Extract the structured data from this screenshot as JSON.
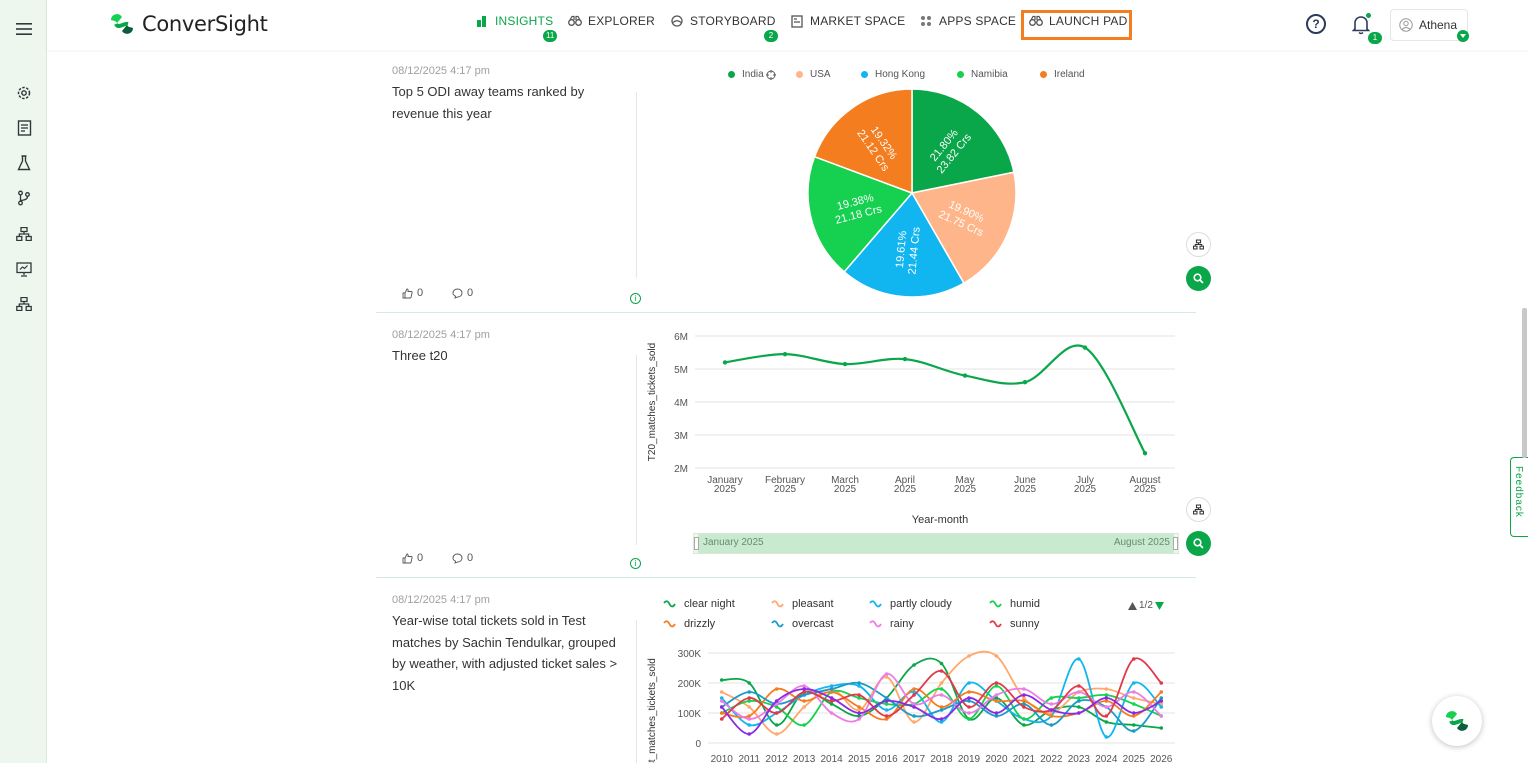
{
  "app": {
    "name": "ConverSight"
  },
  "nav": {
    "insights": "INSIGHTS",
    "insights_badge": "11",
    "explorer": "EXPLORER",
    "storyboard": "STORYBOARD",
    "storyboard_badge": "2",
    "market_space": "MARKET SPACE",
    "apps_space": "APPS SPACE",
    "launch_pad": "LAUNCH PAD"
  },
  "header": {
    "help": "?",
    "notification_badge": "1",
    "user_name": "Athena"
  },
  "colors": {
    "brand_green": "#0aa64a",
    "highlight_orange": "#f47d20",
    "sidebar_bg": "#eef7ee"
  },
  "sidebar": {
    "icons": [
      "menu-icon",
      "settings-icon",
      "report-icon",
      "lab-flask-icon",
      "branch-icon",
      "hierarchy-icon",
      "presentation-icon",
      "org-chart-icon"
    ]
  },
  "cards": [
    {
      "date": "08/12/2025 4:17 pm",
      "title": "Top 5 ODI away teams ranked by revenue this year",
      "likes": "0",
      "comments": "0",
      "info": "i"
    },
    {
      "date": "08/12/2025 4:17 pm",
      "title": "Three t20",
      "likes": "0",
      "comments": "0",
      "info": "i"
    },
    {
      "date": "08/12/2025 4:17 pm",
      "title": "Year-wise total tickets sold in Test matches by Sachin Tendulkar, grouped by weather, with adjusted ticket sales > 10K"
    }
  ],
  "chart_data": [
    {
      "type": "pie",
      "slices": [
        {
          "name": "India",
          "percent": "21.80%",
          "value": "23.82 Crs",
          "color": "#0aa64a"
        },
        {
          "name": "USA",
          "percent": "19.90%",
          "value": "21.75 Crs",
          "color": "#ffb58a"
        },
        {
          "name": "Hong Kong",
          "percent": "19.61%",
          "value": "21.44 Crs",
          "color": "#11b5f0"
        },
        {
          "name": "Namibia",
          "percent": "19.38%",
          "value": "21.18 Crs",
          "color": "#15d14f"
        },
        {
          "name": "Ireland",
          "percent": "19.32%",
          "value": "21.12 Crs",
          "color": "#f47d20"
        }
      ]
    },
    {
      "type": "line",
      "categories": [
        "January",
        "February",
        "March",
        "April",
        "May",
        "June",
        "July",
        "August"
      ],
      "year_label": "2025",
      "values": [
        5.2,
        5.45,
        5.15,
        5.3,
        4.8,
        4.6,
        5.65,
        2.45
      ],
      "ylabel": "T20_matches_tickets_sold",
      "xlabel": "Year-month",
      "yticks": [
        "6M",
        "5M",
        "4M",
        "3M",
        "2M"
      ],
      "ylim": [
        2,
        6
      ],
      "range_start": "January 2025",
      "range_end": "August 2025"
    },
    {
      "type": "line",
      "ylabel": "Test_matches_tickets_sold",
      "yticks": [
        "300K",
        "200K",
        "100K",
        "0"
      ],
      "ylim": [
        0,
        300
      ],
      "x": [
        "2010",
        "2011",
        "2012",
        "2013",
        "2014",
        "2015",
        "2016",
        "2017",
        "2018",
        "2019",
        "2020",
        "2021",
        "2022",
        "2023",
        "2024",
        "2025",
        "2026"
      ],
      "legend_page": "1/2",
      "series": [
        {
          "name": "clear night",
          "color": "#0aa64a",
          "values": [
            210,
            200,
            60,
            170,
            130,
            90,
            150,
            260,
            265,
            80,
            150,
            60,
            110,
            120,
            70,
            60,
            50
          ]
        },
        {
          "name": "pleasant",
          "color": "#ffa86b",
          "values": [
            170,
            120,
            30,
            120,
            180,
            110,
            220,
            70,
            200,
            290,
            290,
            150,
            100,
            170,
            180,
            150,
            130
          ]
        },
        {
          "name": "partly cloudy",
          "color": "#11b5f0",
          "values": [
            150,
            60,
            100,
            160,
            190,
            190,
            110,
            170,
            70,
            200,
            140,
            80,
            90,
            280,
            20,
            200,
            120
          ]
        },
        {
          "name": "humid",
          "color": "#15d14f",
          "values": [
            100,
            140,
            120,
            60,
            170,
            150,
            130,
            130,
            180,
            80,
            190,
            80,
            150,
            150,
            160,
            130,
            90
          ]
        },
        {
          "name": "drizzly",
          "color": "#f47d20",
          "values": [
            100,
            90,
            180,
            140,
            170,
            120,
            80,
            180,
            120,
            170,
            140,
            140,
            90,
            100,
            140,
            90,
            170
          ]
        },
        {
          "name": "overcast",
          "color": "#1a9ac8",
          "values": [
            120,
            170,
            130,
            160,
            180,
            200,
            150,
            90,
            110,
            140,
            90,
            130,
            60,
            140,
            120,
            40,
            150
          ]
        },
        {
          "name": "rainy",
          "color": "#ec7ce8",
          "values": [
            140,
            80,
            130,
            190,
            100,
            80,
            230,
            130,
            160,
            100,
            160,
            180,
            130,
            170,
            120,
            170,
            90
          ]
        },
        {
          "name": "sunny",
          "color": "#e03a4a",
          "values": [
            80,
            150,
            100,
            170,
            140,
            160,
            90,
            160,
            240,
            120,
            200,
            120,
            110,
            190,
            90,
            280,
            200
          ]
        },
        {
          "name": "",
          "color": "#8a2be2",
          "values": [
            120,
            30,
            140,
            180,
            150,
            100,
            140,
            120,
            80,
            150,
            100,
            160,
            110,
            100,
            150,
            100,
            140
          ]
        }
      ]
    }
  ],
  "feedback": "Feedback"
}
